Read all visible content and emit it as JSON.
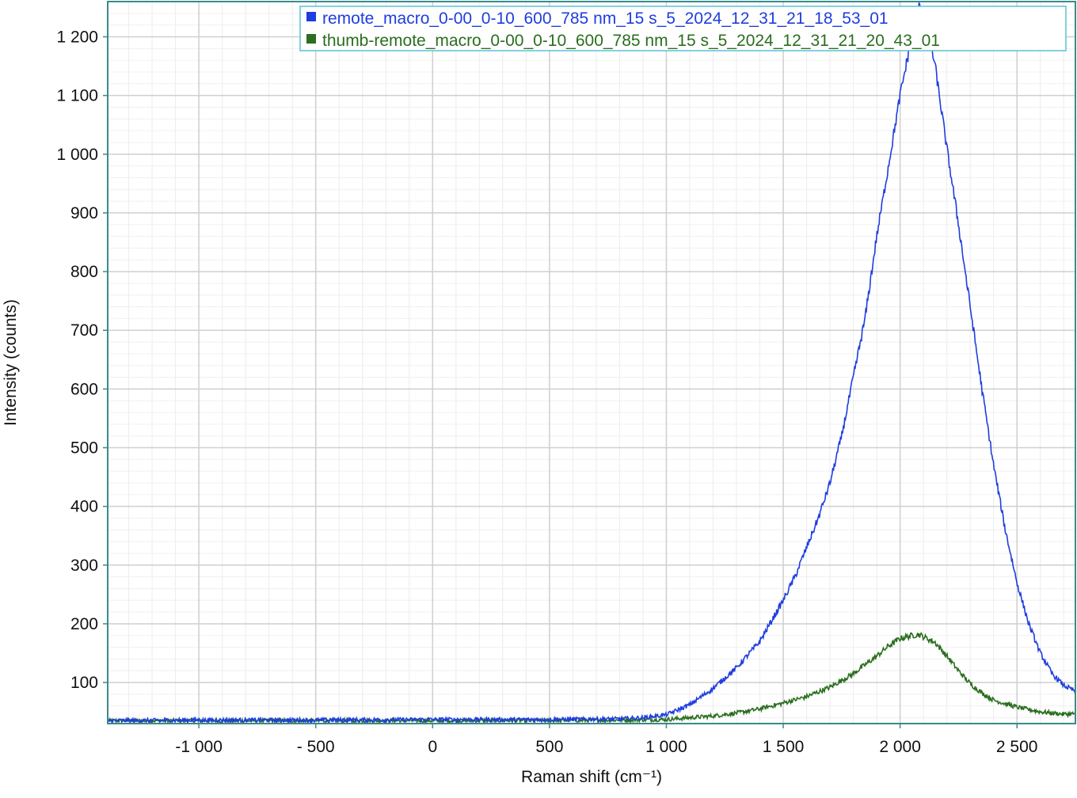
{
  "chart_data": {
    "type": "line",
    "xlabel": "Raman shift (cm⁻¹)",
    "ylabel": "Intensity (counts)",
    "xlim": [
      -1390,
      2750
    ],
    "ylim": [
      30,
      1260
    ],
    "x_ticks": [
      -1000,
      -500,
      0,
      500,
      1000,
      1500,
      2000,
      2500
    ],
    "x_tick_labels": [
      "-1 000",
      "- 500",
      "0",
      "500",
      "1 000",
      "1 500",
      "2 000",
      "2 500"
    ],
    "y_ticks": [
      100,
      200,
      300,
      400,
      500,
      600,
      700,
      800,
      900,
      1000,
      1100,
      1200
    ],
    "y_tick_labels": [
      "100",
      "200",
      "300",
      "400",
      "500",
      "600",
      "700",
      "800",
      "900",
      "1 000",
      "1 100",
      "1 200"
    ],
    "grid": true,
    "legend_position": "top-right",
    "series": [
      {
        "name": "remote_macro_0-00_0-10_600_785 nm_15 s_5_2024_12_31_21_18_53_01",
        "color": "#1f3de0",
        "points": [
          [
            -1390,
            35
          ],
          [
            -1000,
            36
          ],
          [
            -500,
            36
          ],
          [
            0,
            37
          ],
          [
            500,
            37
          ],
          [
            800,
            38
          ],
          [
            900,
            40
          ],
          [
            1000,
            45
          ],
          [
            1100,
            62
          ],
          [
            1200,
            90
          ],
          [
            1300,
            125
          ],
          [
            1400,
            170
          ],
          [
            1500,
            240
          ],
          [
            1550,
            280
          ],
          [
            1600,
            330
          ],
          [
            1650,
            380
          ],
          [
            1700,
            440
          ],
          [
            1750,
            520
          ],
          [
            1800,
            620
          ],
          [
            1850,
            720
          ],
          [
            1900,
            860
          ],
          [
            1950,
            980
          ],
          [
            2000,
            1100
          ],
          [
            2040,
            1180
          ],
          [
            2070,
            1240
          ],
          [
            2080,
            1250
          ],
          [
            2100,
            1240
          ],
          [
            2130,
            1190
          ],
          [
            2150,
            1150
          ],
          [
            2200,
            1010
          ],
          [
            2250,
            880
          ],
          [
            2300,
            740
          ],
          [
            2350,
            600
          ],
          [
            2400,
            470
          ],
          [
            2450,
            360
          ],
          [
            2500,
            270
          ],
          [
            2550,
            200
          ],
          [
            2600,
            150
          ],
          [
            2650,
            115
          ],
          [
            2700,
            95
          ],
          [
            2750,
            85
          ]
        ]
      },
      {
        "name": "thumb-remote_macro_0-00_0-10_600_785 nm_15 s_5_2024_12_31_21_20_43_01",
        "color": "#2a6e1e",
        "points": [
          [
            -1390,
            35
          ],
          [
            -1000,
            35
          ],
          [
            -500,
            35
          ],
          [
            0,
            35
          ],
          [
            500,
            35
          ],
          [
            1000,
            37
          ],
          [
            1100,
            40
          ],
          [
            1200,
            43
          ],
          [
            1300,
            48
          ],
          [
            1400,
            55
          ],
          [
            1500,
            65
          ],
          [
            1600,
            76
          ],
          [
            1700,
            92
          ],
          [
            1800,
            115
          ],
          [
            1900,
            145
          ],
          [
            1950,
            162
          ],
          [
            2000,
            175
          ],
          [
            2050,
            180
          ],
          [
            2080,
            182
          ],
          [
            2100,
            178
          ],
          [
            2150,
            168
          ],
          [
            2200,
            145
          ],
          [
            2250,
            120
          ],
          [
            2300,
            98
          ],
          [
            2350,
            82
          ],
          [
            2400,
            70
          ],
          [
            2500,
            58
          ],
          [
            2600,
            50
          ],
          [
            2700,
            46
          ],
          [
            2750,
            47
          ]
        ]
      }
    ]
  }
}
